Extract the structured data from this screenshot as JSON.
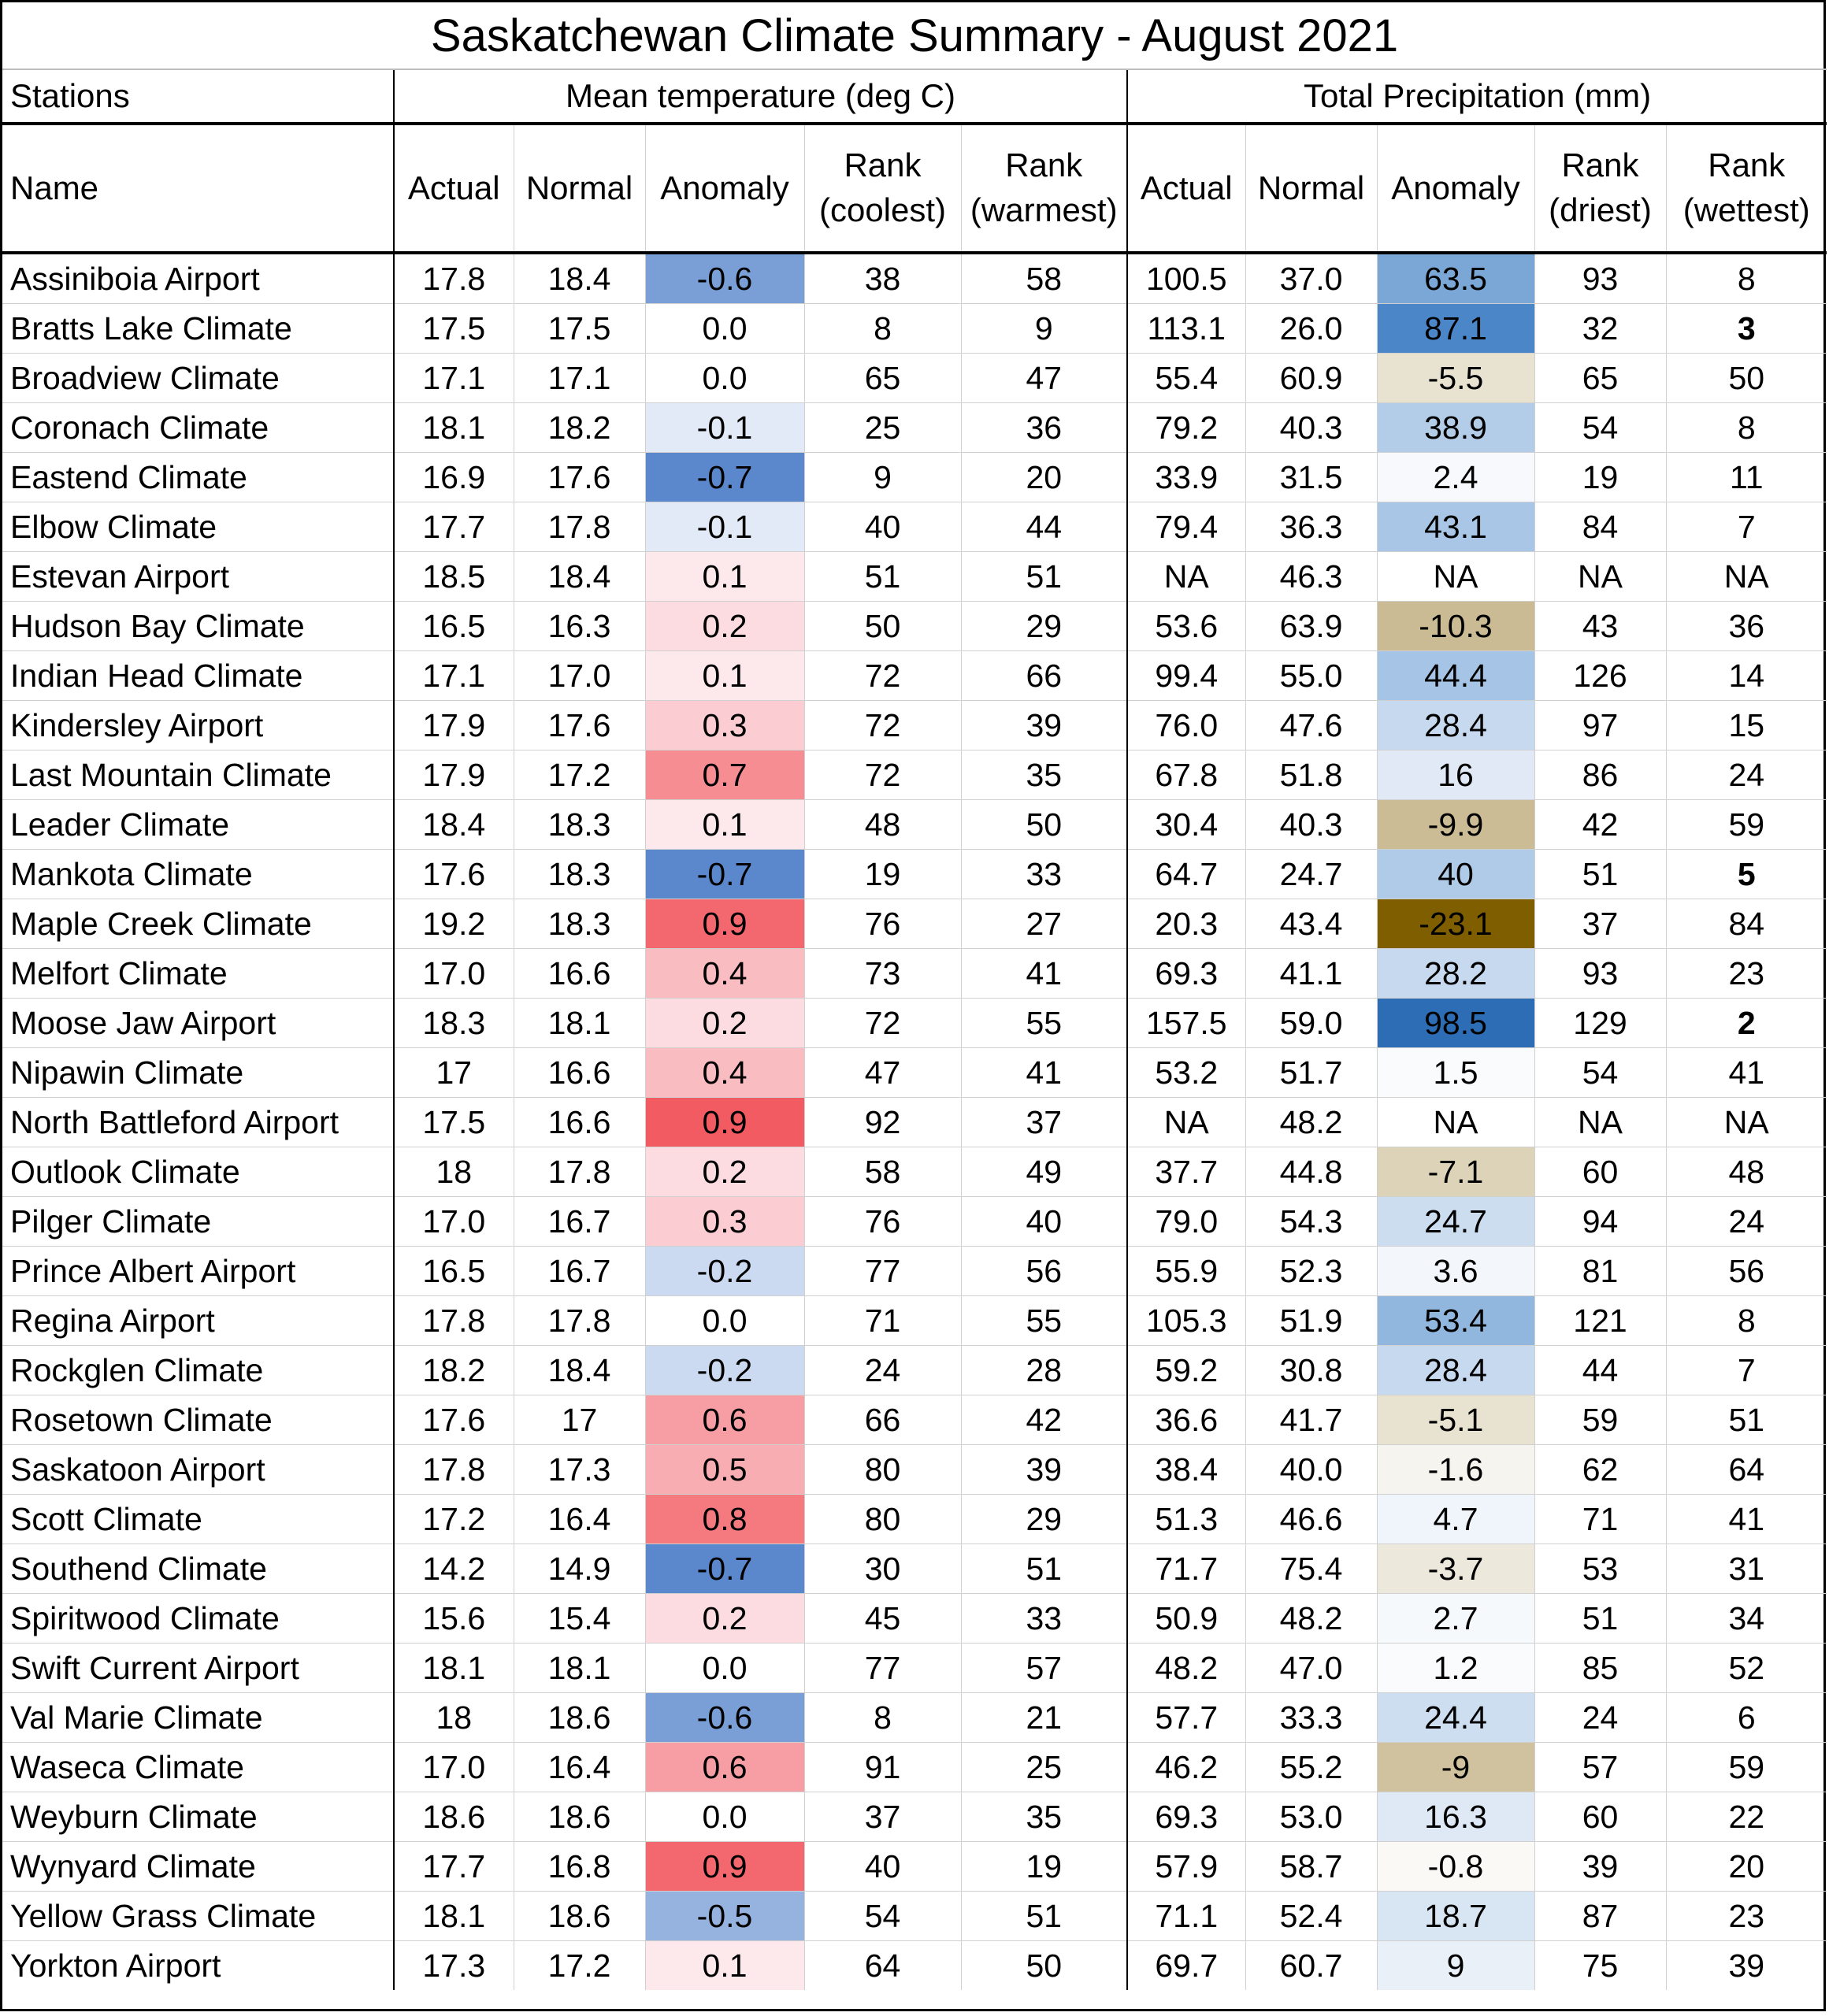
{
  "title": "Saskatchewan Climate Summary - August 2021",
  "groups": {
    "stations": "Stations",
    "temp": "Mean temperature (deg C)",
    "precip": "Total Precipitation (mm)"
  },
  "headers": {
    "name": "Name",
    "t_actual": "Actual",
    "t_normal": "Normal",
    "t_anomaly": "Anomaly",
    "t_rank_cool_1": "Rank",
    "t_rank_cool_2": "(coolest)",
    "t_rank_warm_1": "Rank",
    "t_rank_warm_2": "(warmest)",
    "p_actual": "Actual",
    "p_normal": "Normal",
    "p_anomaly": "Anomaly",
    "p_rank_dry_1": "Rank",
    "p_rank_dry_2": "(driest)",
    "p_rank_wet_1": "Rank",
    "p_rank_wet_2": "(wettest)"
  },
  "colors": {
    "cool_strong": "#4a7cc4",
    "warm_strong": "#f25b62",
    "wet_strong": "#2d6db5",
    "dry_strong": "#7f5e00"
  },
  "rows": [
    {
      "name": "Assiniboia Airport",
      "t_act": "17.8",
      "t_norm": "18.4",
      "t_anom": "-0.6",
      "t_anom_bg": "#7a9fd6",
      "r_cool": "38",
      "r_warm": "58",
      "p_act": "100.5",
      "p_norm": "37.0",
      "p_anom": "63.5",
      "p_anom_bg": "#7ba7d6",
      "r_dry": "93",
      "r_wet": "8",
      "wet_bold": false
    },
    {
      "name": "Bratts Lake Climate",
      "t_act": "17.5",
      "t_norm": "17.5",
      "t_anom": "0.0",
      "t_anom_bg": "#ffffff",
      "r_cool": "8",
      "r_warm": "9",
      "p_act": "113.1",
      "p_norm": "26.0",
      "p_anom": "87.1",
      "p_anom_bg": "#4a86c8",
      "r_dry": "32",
      "r_wet": "3",
      "wet_bold": true
    },
    {
      "name": "Broadview Climate",
      "t_act": "17.1",
      "t_norm": "17.1",
      "t_anom": "0.0",
      "t_anom_bg": "#ffffff",
      "r_cool": "65",
      "r_warm": "47",
      "p_act": "55.4",
      "p_norm": "60.9",
      "p_anom": "-5.5",
      "p_anom_bg": "#e8e2d0",
      "r_dry": "65",
      "r_wet": "50",
      "wet_bold": false
    },
    {
      "name": "Coronach Climate",
      "t_act": "18.1",
      "t_norm": "18.2",
      "t_anom": "-0.1",
      "t_anom_bg": "#e3eaf7",
      "r_cool": "25",
      "r_warm": "36",
      "p_act": "79.2",
      "p_norm": "40.3",
      "p_anom": "38.9",
      "p_anom_bg": "#b3cde8",
      "r_dry": "54",
      "r_wet": "8",
      "wet_bold": false
    },
    {
      "name": "Eastend Climate",
      "t_act": "16.9",
      "t_norm": "17.6",
      "t_anom": "-0.7",
      "t_anom_bg": "#5b88cc",
      "r_cool": "9",
      "r_warm": "20",
      "p_act": "33.9",
      "p_norm": "31.5",
      "p_anom": "2.4",
      "p_anom_bg": "#f7f9fd",
      "r_dry": "19",
      "r_wet": "11",
      "wet_bold": false
    },
    {
      "name": "Elbow Climate",
      "t_act": "17.7",
      "t_norm": "17.8",
      "t_anom": "-0.1",
      "t_anom_bg": "#e3eaf7",
      "r_cool": "40",
      "r_warm": "44",
      "p_act": "79.4",
      "p_norm": "36.3",
      "p_anom": "43.1",
      "p_anom_bg": "#a9c6e6",
      "r_dry": "84",
      "r_wet": "7",
      "wet_bold": false
    },
    {
      "name": "Estevan Airport",
      "t_act": "18.5",
      "t_norm": "18.4",
      "t_anom": "0.1",
      "t_anom_bg": "#fde9ec",
      "r_cool": "51",
      "r_warm": "51",
      "p_act": "NA",
      "p_norm": "46.3",
      "p_anom": "NA",
      "p_anom_bg": "#ffffff",
      "r_dry": "NA",
      "r_wet": "NA",
      "wet_bold": false
    },
    {
      "name": "Hudson Bay Climate",
      "t_act": "16.5",
      "t_norm": "16.3",
      "t_anom": "0.2",
      "t_anom_bg": "#fcdce0",
      "r_cool": "50",
      "r_warm": "29",
      "p_act": "53.6",
      "p_norm": "63.9",
      "p_anom": "-10.3",
      "p_anom_bg": "#cbbb94",
      "r_dry": "43",
      "r_wet": "36",
      "wet_bold": false
    },
    {
      "name": "Indian Head Climate",
      "t_act": "17.1",
      "t_norm": "17.0",
      "t_anom": "0.1",
      "t_anom_bg": "#fde9ec",
      "r_cool": "72",
      "r_warm": "66",
      "p_act": "99.4",
      "p_norm": "55.0",
      "p_anom": "44.4",
      "p_anom_bg": "#a6c4e5",
      "r_dry": "126",
      "r_wet": "14",
      "wet_bold": false
    },
    {
      "name": "Kindersley Airport",
      "t_act": "17.9",
      "t_norm": "17.6",
      "t_anom": "0.3",
      "t_anom_bg": "#fbcdd2",
      "r_cool": "72",
      "r_warm": "39",
      "p_act": "76.0",
      "p_norm": "47.6",
      "p_anom": "28.4",
      "p_anom_bg": "#c7d9ee",
      "r_dry": "97",
      "r_wet": "15",
      "wet_bold": false
    },
    {
      "name": "Last Mountain Climate",
      "t_act": "17.9",
      "t_norm": "17.2",
      "t_anom": "0.7",
      "t_anom_bg": "#f58d93",
      "r_cool": "72",
      "r_warm": "35",
      "p_act": "67.8",
      "p_norm": "51.8",
      "p_anom": "16",
      "p_anom_bg": "#e0e9f5",
      "r_dry": "86",
      "r_wet": "24",
      "wet_bold": false
    },
    {
      "name": "Leader Climate",
      "t_act": "18.4",
      "t_norm": "18.3",
      "t_anom": "0.1",
      "t_anom_bg": "#fde9ec",
      "r_cool": "48",
      "r_warm": "50",
      "p_act": "30.4",
      "p_norm": "40.3",
      "p_anom": "-9.9",
      "p_anom_bg": "#ccbc96",
      "r_dry": "42",
      "r_wet": "59",
      "wet_bold": false
    },
    {
      "name": "Mankota Climate",
      "t_act": "17.6",
      "t_norm": "18.3",
      "t_anom": "-0.7",
      "t_anom_bg": "#5b88cc",
      "r_cool": "19",
      "r_warm": "33",
      "p_act": "64.7",
      "p_norm": "24.7",
      "p_anom": "40",
      "p_anom_bg": "#afcbe8",
      "r_dry": "51",
      "r_wet": "5",
      "wet_bold": true
    },
    {
      "name": "Maple Creek Climate",
      "t_act": "19.2",
      "t_norm": "18.3",
      "t_anom": "0.9",
      "t_anom_bg": "#f3676e",
      "r_cool": "76",
      "r_warm": "27",
      "p_act": "20.3",
      "p_norm": "43.4",
      "p_anom": "-23.1",
      "p_anom_bg": "#7f5e00",
      "r_dry": "37",
      "r_wet": "84",
      "wet_bold": false
    },
    {
      "name": "Melfort Climate",
      "t_act": "17.0",
      "t_norm": "16.6",
      "t_anom": "0.4",
      "t_anom_bg": "#f9bcc1",
      "r_cool": "73",
      "r_warm": "41",
      "p_act": "69.3",
      "p_norm": "41.1",
      "p_anom": "28.2",
      "p_anom_bg": "#c7d9ee",
      "r_dry": "93",
      "r_wet": "23",
      "wet_bold": false
    },
    {
      "name": "Moose Jaw Airport",
      "t_act": "18.3",
      "t_norm": "18.1",
      "t_anom": "0.2",
      "t_anom_bg": "#fcdce0",
      "r_cool": "72",
      "r_warm": "55",
      "p_act": "157.5",
      "p_norm": "59.0",
      "p_anom": "98.5",
      "p_anom_bg": "#2d6db5",
      "r_dry": "129",
      "r_wet": "2",
      "wet_bold": true
    },
    {
      "name": "Nipawin Climate",
      "t_act": "17",
      "t_norm": "16.6",
      "t_anom": "0.4",
      "t_anom_bg": "#f9bcc1",
      "r_cool": "47",
      "r_warm": "41",
      "p_act": "53.2",
      "p_norm": "51.7",
      "p_anom": "1.5",
      "p_anom_bg": "#fafbfd",
      "r_dry": "54",
      "r_wet": "41",
      "wet_bold": false
    },
    {
      "name": "North Battleford Airport",
      "t_act": "17.5",
      "t_norm": "16.6",
      "t_anom": "0.9",
      "t_anom_bg": "#f25b62",
      "r_cool": "92",
      "r_warm": "37",
      "p_act": "NA",
      "p_norm": "48.2",
      "p_anom": "NA",
      "p_anom_bg": "#ffffff",
      "r_dry": "NA",
      "r_wet": "NA",
      "wet_bold": false
    },
    {
      "name": "Outlook Climate",
      "t_act": "18",
      "t_norm": "17.8",
      "t_anom": "0.2",
      "t_anom_bg": "#fcdce0",
      "r_cool": "58",
      "r_warm": "49",
      "p_act": "37.7",
      "p_norm": "44.8",
      "p_anom": "-7.1",
      "p_anom_bg": "#ddd3b8",
      "r_dry": "60",
      "r_wet": "48",
      "wet_bold": false
    },
    {
      "name": "Pilger Climate",
      "t_act": "17.0",
      "t_norm": "16.7",
      "t_anom": "0.3",
      "t_anom_bg": "#fbcdd2",
      "r_cool": "76",
      "r_warm": "40",
      "p_act": "79.0",
      "p_norm": "54.3",
      "p_anom": "24.7",
      "p_anom_bg": "#cdddf0",
      "r_dry": "94",
      "r_wet": "24",
      "wet_bold": false
    },
    {
      "name": "Prince Albert Airport",
      "t_act": "16.5",
      "t_norm": "16.7",
      "t_anom": "-0.2",
      "t_anom_bg": "#cbdaf0",
      "r_cool": "77",
      "r_warm": "56",
      "p_act": "55.9",
      "p_norm": "52.3",
      "p_anom": "3.6",
      "p_anom_bg": "#f3f7fb",
      "r_dry": "81",
      "r_wet": "56",
      "wet_bold": false
    },
    {
      "name": "Regina Airport",
      "t_act": "17.8",
      "t_norm": "17.8",
      "t_anom": "0.0",
      "t_anom_bg": "#ffffff",
      "r_cool": "71",
      "r_warm": "55",
      "p_act": "105.3",
      "p_norm": "51.9",
      "p_anom": "53.4",
      "p_anom_bg": "#92b7df",
      "r_dry": "121",
      "r_wet": "8",
      "wet_bold": false
    },
    {
      "name": "Rockglen Climate",
      "t_act": "18.2",
      "t_norm": "18.4",
      "t_anom": "-0.2",
      "t_anom_bg": "#cbdaf0",
      "r_cool": "24",
      "r_warm": "28",
      "p_act": "59.2",
      "p_norm": "30.8",
      "p_anom": "28.4",
      "p_anom_bg": "#c7d9ee",
      "r_dry": "44",
      "r_wet": "7",
      "wet_bold": false
    },
    {
      "name": "Rosetown Climate",
      "t_act": "17.6",
      "t_norm": "17",
      "t_anom": "0.6",
      "t_anom_bg": "#f69ea3",
      "r_cool": "66",
      "r_warm": "42",
      "p_act": "36.6",
      "p_norm": "41.7",
      "p_anom": "-5.1",
      "p_anom_bg": "#e8e2d0",
      "r_dry": "59",
      "r_wet": "51",
      "wet_bold": false
    },
    {
      "name": "Saskatoon Airport",
      "t_act": "17.8",
      "t_norm": "17.3",
      "t_anom": "0.5",
      "t_anom_bg": "#f8adb2",
      "r_cool": "80",
      "r_warm": "39",
      "p_act": "38.4",
      "p_norm": "40.0",
      "p_anom": "-1.6",
      "p_anom_bg": "#f6f4ee",
      "r_dry": "62",
      "r_wet": "64",
      "wet_bold": false
    },
    {
      "name": "Scott Climate",
      "t_act": "17.2",
      "t_norm": "16.4",
      "t_anom": "0.8",
      "t_anom_bg": "#f47a80",
      "r_cool": "80",
      "r_warm": "29",
      "p_act": "51.3",
      "p_norm": "46.6",
      "p_anom": "4.7",
      "p_anom_bg": "#f0f5fb",
      "r_dry": "71",
      "r_wet": "41",
      "wet_bold": false
    },
    {
      "name": "Southend Climate",
      "t_act": "14.2",
      "t_norm": "14.9",
      "t_anom": "-0.7",
      "t_anom_bg": "#5b88cc",
      "r_cool": "30",
      "r_warm": "51",
      "p_act": "71.7",
      "p_norm": "75.4",
      "p_anom": "-3.7",
      "p_anom_bg": "#ede8dc",
      "r_dry": "53",
      "r_wet": "31",
      "wet_bold": false
    },
    {
      "name": "Spiritwood Climate",
      "t_act": "15.6",
      "t_norm": "15.4",
      "t_anom": "0.2",
      "t_anom_bg": "#fcdce0",
      "r_cool": "45",
      "r_warm": "33",
      "p_act": "50.9",
      "p_norm": "48.2",
      "p_anom": "2.7",
      "p_anom_bg": "#f6f9fc",
      "r_dry": "51",
      "r_wet": "34",
      "wet_bold": false
    },
    {
      "name": "Swift Current Airport",
      "t_act": "18.1",
      "t_norm": "18.1",
      "t_anom": "0.0",
      "t_anom_bg": "#ffffff",
      "r_cool": "77",
      "r_warm": "57",
      "p_act": "48.2",
      "p_norm": "47.0",
      "p_anom": "1.2",
      "p_anom_bg": "#fafbfd",
      "r_dry": "85",
      "r_wet": "52",
      "wet_bold": false
    },
    {
      "name": "Val Marie Climate",
      "t_act": "18",
      "t_norm": "18.6",
      "t_anom": "-0.6",
      "t_anom_bg": "#7a9fd6",
      "r_cool": "8",
      "r_warm": "21",
      "p_act": "57.7",
      "p_norm": "33.3",
      "p_anom": "24.4",
      "p_anom_bg": "#cddef0",
      "r_dry": "24",
      "r_wet": "6",
      "wet_bold": false
    },
    {
      "name": "Waseca Climate",
      "t_act": "17.0",
      "t_norm": "16.4",
      "t_anom": "0.6",
      "t_anom_bg": "#f69ea3",
      "r_cool": "91",
      "r_warm": "25",
      "p_act": "46.2",
      "p_norm": "55.2",
      "p_anom": "-9",
      "p_anom_bg": "#d0c29f",
      "r_dry": "57",
      "r_wet": "59",
      "wet_bold": false
    },
    {
      "name": "Weyburn Climate",
      "t_act": "18.6",
      "t_norm": "18.6",
      "t_anom": "0.0",
      "t_anom_bg": "#ffffff",
      "r_cool": "37",
      "r_warm": "35",
      "p_act": "69.3",
      "p_norm": "53.0",
      "p_anom": "16.3",
      "p_anom_bg": "#dfe8f5",
      "r_dry": "60",
      "r_wet": "22",
      "wet_bold": false
    },
    {
      "name": "Wynyard Climate",
      "t_act": "17.7",
      "t_norm": "16.8",
      "t_anom": "0.9",
      "t_anom_bg": "#f3676e",
      "r_cool": "40",
      "r_warm": "19",
      "p_act": "57.9",
      "p_norm": "58.7",
      "p_anom": "-0.8",
      "p_anom_bg": "#faf9f5",
      "r_dry": "39",
      "r_wet": "20",
      "wet_bold": false
    },
    {
      "name": "Yellow Grass Climate",
      "t_act": "18.1",
      "t_norm": "18.6",
      "t_anom": "-0.5",
      "t_anom_bg": "#96b3e0",
      "r_cool": "54",
      "r_warm": "51",
      "p_act": "71.1",
      "p_norm": "52.4",
      "p_anom": "18.7",
      "p_anom_bg": "#d8e5f3",
      "r_dry": "87",
      "r_wet": "23",
      "wet_bold": false
    },
    {
      "name": "Yorkton Airport",
      "t_act": "17.3",
      "t_norm": "17.2",
      "t_anom": "0.1",
      "t_anom_bg": "#fde9ec",
      "r_cool": "64",
      "r_warm": "50",
      "p_act": "69.7",
      "p_norm": "60.7",
      "p_anom": "9",
      "p_anom_bg": "#e9f0f8",
      "r_dry": "75",
      "r_wet": "39",
      "wet_bold": false
    }
  ]
}
